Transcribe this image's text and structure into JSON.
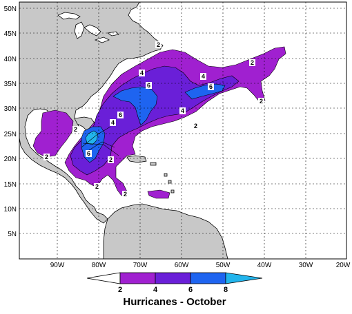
{
  "map": {
    "title": "Hurricanes - October",
    "latitude_labels": [
      "50N",
      "45N",
      "40N",
      "35N",
      "30N",
      "25N",
      "20N",
      "15N",
      "10N",
      "5N"
    ],
    "longitude_labels": [
      "90W",
      "80W",
      "70W",
      "60W",
      "50W",
      "40W",
      "30W",
      "20W"
    ],
    "contour_labels": [
      "2",
      "2",
      "2",
      "2",
      "2",
      "2",
      "2",
      "2",
      "2",
      "4",
      "4",
      "4",
      "4",
      "6",
      "6",
      "6",
      "6"
    ],
    "colorbar": {
      "ticks": [
        "2",
        "4",
        "6",
        "8"
      ],
      "colors": [
        "#ffffff",
        "#a020d0",
        "#6a1fd8",
        "#1e64f0",
        "#22b4ec"
      ]
    },
    "colors": {
      "land": "#c8c8c8",
      "ocean": "#ffffff",
      "level_2": "#a020d0",
      "level_4": "#6a1fd8",
      "level_6": "#1e64f0",
      "level_8": "#22b4ec"
    }
  }
}
